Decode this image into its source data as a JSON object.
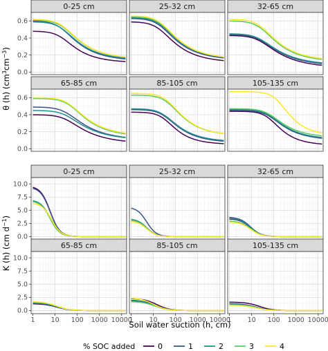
{
  "chart_data": {
    "type": "line",
    "xlabel": "Soil water suction (h, cm)",
    "x_scale": "log10",
    "x_ticks": [
      1,
      10,
      100,
      1000,
      10000
    ],
    "x_tick_labels": [
      "1",
      "10",
      "100",
      "1000",
      "10000"
    ],
    "xlim": [
      1,
      15000
    ],
    "grid": true,
    "legend": {
      "title": "% SOC added",
      "position": "bottom",
      "items": [
        {
          "label": "0",
          "color": "#440154"
        },
        {
          "label": "1",
          "color": "#3B528B"
        },
        {
          "label": "2",
          "color": "#21908C"
        },
        {
          "label": "3",
          "color": "#5DC863"
        },
        {
          "label": "4",
          "color": "#FDE725"
        }
      ]
    },
    "top": {
      "ylabel": "θ (h) (cm³cm⁻³)",
      "ylabel_parts": {
        "main": "θ (h) (cm",
        "s1": "3",
        "mid": "cm",
        "s2": "−3",
        "end": ")"
      },
      "ylim": [
        -0.03,
        0.7
      ],
      "yticks": [
        0.0,
        0.2,
        0.4,
        0.6
      ],
      "ytick_labels": [
        "0.0",
        "0.2",
        "0.4",
        "0.6"
      ],
      "panels": [
        {
          "title": "0-25 cm",
          "series": [
            {
              "name": "0",
              "theta_s": 0.48,
              "theta_r": 0.11,
              "alpha": 0.05,
              "n": 1.5
            },
            {
              "name": "1",
              "theta_s": 0.6,
              "theta_r": 0.13,
              "alpha": 0.05,
              "n": 1.45
            },
            {
              "name": "2",
              "theta_s": 0.59,
              "theta_r": 0.14,
              "alpha": 0.045,
              "n": 1.45
            },
            {
              "name": "3",
              "theta_s": 0.61,
              "theta_r": 0.15,
              "alpha": 0.04,
              "n": 1.45
            },
            {
              "name": "4",
              "theta_s": 0.62,
              "theta_r": 0.15,
              "alpha": 0.04,
              "n": 1.45
            }
          ]
        },
        {
          "title": "25-32 cm",
          "series": [
            {
              "name": "0",
              "theta_s": 0.59,
              "theta_r": 0.11,
              "alpha": 0.05,
              "n": 1.45
            },
            {
              "name": "1",
              "theta_s": 0.63,
              "theta_r": 0.14,
              "alpha": 0.045,
              "n": 1.45
            },
            {
              "name": "2",
              "theta_s": 0.64,
              "theta_r": 0.15,
              "alpha": 0.042,
              "n": 1.45
            },
            {
              "name": "3",
              "theta_s": 0.65,
              "theta_r": 0.15,
              "alpha": 0.04,
              "n": 1.45
            },
            {
              "name": "4",
              "theta_s": 0.66,
              "theta_r": 0.15,
              "alpha": 0.04,
              "n": 1.45
            }
          ]
        },
        {
          "title": "32-65 cm",
          "series": [
            {
              "name": "0",
              "theta_s": 0.43,
              "theta_r": 0.05,
              "alpha": 0.04,
              "n": 1.4
            },
            {
              "name": "1",
              "theta_s": 0.44,
              "theta_r": 0.07,
              "alpha": 0.04,
              "n": 1.4
            },
            {
              "name": "2",
              "theta_s": 0.45,
              "theta_r": 0.08,
              "alpha": 0.04,
              "n": 1.4
            },
            {
              "name": "3",
              "theta_s": 0.6,
              "theta_r": 0.12,
              "alpha": 0.035,
              "n": 1.45
            },
            {
              "name": "4",
              "theta_s": 0.62,
              "theta_r": 0.13,
              "alpha": 0.035,
              "n": 1.45
            }
          ]
        },
        {
          "title": "65-85 cm",
          "series": [
            {
              "name": "0",
              "theta_s": 0.4,
              "theta_r": 0.06,
              "alpha": 0.03,
              "n": 1.4
            },
            {
              "name": "1",
              "theta_s": 0.49,
              "theta_r": 0.1,
              "alpha": 0.03,
              "n": 1.4
            },
            {
              "name": "2",
              "theta_s": 0.45,
              "theta_r": 0.1,
              "alpha": 0.03,
              "n": 1.4
            },
            {
              "name": "3",
              "theta_s": 0.59,
              "theta_r": 0.14,
              "alpha": 0.02,
              "n": 1.45
            },
            {
              "name": "4",
              "theta_s": 0.6,
              "theta_r": 0.15,
              "alpha": 0.02,
              "n": 1.45
            }
          ]
        },
        {
          "title": "85-105 cm",
          "series": [
            {
              "name": "0",
              "theta_s": 0.43,
              "theta_r": 0.05,
              "alpha": 0.03,
              "n": 1.6
            },
            {
              "name": "1",
              "theta_s": 0.46,
              "theta_r": 0.07,
              "alpha": 0.03,
              "n": 1.5
            },
            {
              "name": "2",
              "theta_s": 0.47,
              "theta_r": 0.08,
              "alpha": 0.03,
              "n": 1.5
            },
            {
              "name": "3",
              "theta_s": 0.63,
              "theta_r": 0.15,
              "alpha": 0.02,
              "n": 1.5
            },
            {
              "name": "4",
              "theta_s": 0.65,
              "theta_r": 0.15,
              "alpha": 0.02,
              "n": 1.5
            }
          ]
        },
        {
          "title": "105-135 cm",
          "series": [
            {
              "name": "0",
              "theta_s": 0.44,
              "theta_r": 0.04,
              "alpha": 0.015,
              "n": 1.6
            },
            {
              "name": "1",
              "theta_s": 0.45,
              "theta_r": 0.1,
              "alpha": 0.015,
              "n": 1.5
            },
            {
              "name": "2",
              "theta_s": 0.46,
              "theta_r": 0.11,
              "alpha": 0.015,
              "n": 1.5
            },
            {
              "name": "3",
              "theta_s": 0.47,
              "theta_r": 0.13,
              "alpha": 0.015,
              "n": 1.5
            },
            {
              "name": "4",
              "theta_s": 0.67,
              "theta_r": 0.15,
              "alpha": 0.006,
              "n": 1.6
            }
          ]
        }
      ]
    },
    "bottom": {
      "ylabel": "K (h) (cm d⁻¹)",
      "ylabel_parts": {
        "main": "K (h) (cm d",
        "s1": "−1",
        "end": ")"
      },
      "ylim": [
        -0.6,
        11.2
      ],
      "yticks": [
        0.0,
        2.5,
        5.0,
        7.5,
        10.0
      ],
      "ytick_labels": [
        "0.0",
        "2.5",
        "5.0",
        "7.5",
        "10.0"
      ],
      "panels": [
        {
          "title": "0-25 cm",
          "series": [
            {
              "name": "0",
              "k0": 9.6,
              "h50": 6,
              "p": 2.0
            },
            {
              "name": "1",
              "k0": 9.4,
              "h50": 6,
              "p": 2.0
            },
            {
              "name": "2",
              "k0": 7.0,
              "h50": 6,
              "p": 2.0
            },
            {
              "name": "3",
              "k0": 6.8,
              "h50": 6,
              "p": 2.0
            },
            {
              "name": "4",
              "k0": 6.4,
              "h50": 7,
              "p": 2.0
            }
          ]
        },
        {
          "title": "25-32 cm",
          "series": [
            {
              "name": "0",
              "k0": 0.0,
              "h50": 5,
              "p": 2.0
            },
            {
              "name": "1",
              "k0": 5.6,
              "h50": 5,
              "p": 2.0
            },
            {
              "name": "2",
              "k0": 3.4,
              "h50": 5,
              "p": 2.0
            },
            {
              "name": "3",
              "k0": 3.2,
              "h50": 5,
              "p": 2.0
            },
            {
              "name": "4",
              "k0": 3.0,
              "h50": 5,
              "p": 2.0
            }
          ]
        },
        {
          "title": "32-65 cm",
          "series": [
            {
              "name": "0",
              "k0": 3.4,
              "h50": 9,
              "p": 1.8
            },
            {
              "name": "1",
              "k0": 3.7,
              "h50": 9,
              "p": 1.8
            },
            {
              "name": "2",
              "k0": 3.5,
              "h50": 9,
              "p": 1.8
            },
            {
              "name": "3",
              "k0": 3.0,
              "h50": 9,
              "p": 1.8
            },
            {
              "name": "4",
              "k0": 2.8,
              "h50": 9,
              "p": 1.8
            }
          ]
        },
        {
          "title": "65-85 cm",
          "series": [
            {
              "name": "0",
              "k0": 1.3,
              "h50": 12,
              "p": 1.5
            },
            {
              "name": "1",
              "k0": 1.4,
              "h50": 12,
              "p": 1.5
            },
            {
              "name": "2",
              "k0": 1.5,
              "h50": 12,
              "p": 1.5
            },
            {
              "name": "3",
              "k0": 1.6,
              "h50": 12,
              "p": 1.5
            },
            {
              "name": "4",
              "k0": 1.7,
              "h50": 12,
              "p": 1.5
            }
          ]
        },
        {
          "title": "85-105 cm",
          "series": [
            {
              "name": "0",
              "k0": 2.3,
              "h50": 14,
              "p": 1.5
            },
            {
              "name": "1",
              "k0": 1.9,
              "h50": 12,
              "p": 1.5
            },
            {
              "name": "2",
              "k0": 2.0,
              "h50": 12,
              "p": 1.5
            },
            {
              "name": "3",
              "k0": 1.7,
              "h50": 12,
              "p": 1.5
            },
            {
              "name": "4",
              "k0": 2.4,
              "h50": 10,
              "p": 1.5
            }
          ]
        },
        {
          "title": "105-135 cm",
          "series": [
            {
              "name": "0",
              "k0": 1.6,
              "h50": 22,
              "p": 1.5
            },
            {
              "name": "1",
              "k0": 1.3,
              "h50": 16,
              "p": 1.5
            },
            {
              "name": "2",
              "k0": 1.2,
              "h50": 16,
              "p": 1.5
            },
            {
              "name": "3",
              "k0": 1.1,
              "h50": 16,
              "p": 1.5
            },
            {
              "name": "4",
              "k0": 1.0,
              "h50": 16,
              "p": 1.5
            }
          ]
        }
      ]
    }
  }
}
